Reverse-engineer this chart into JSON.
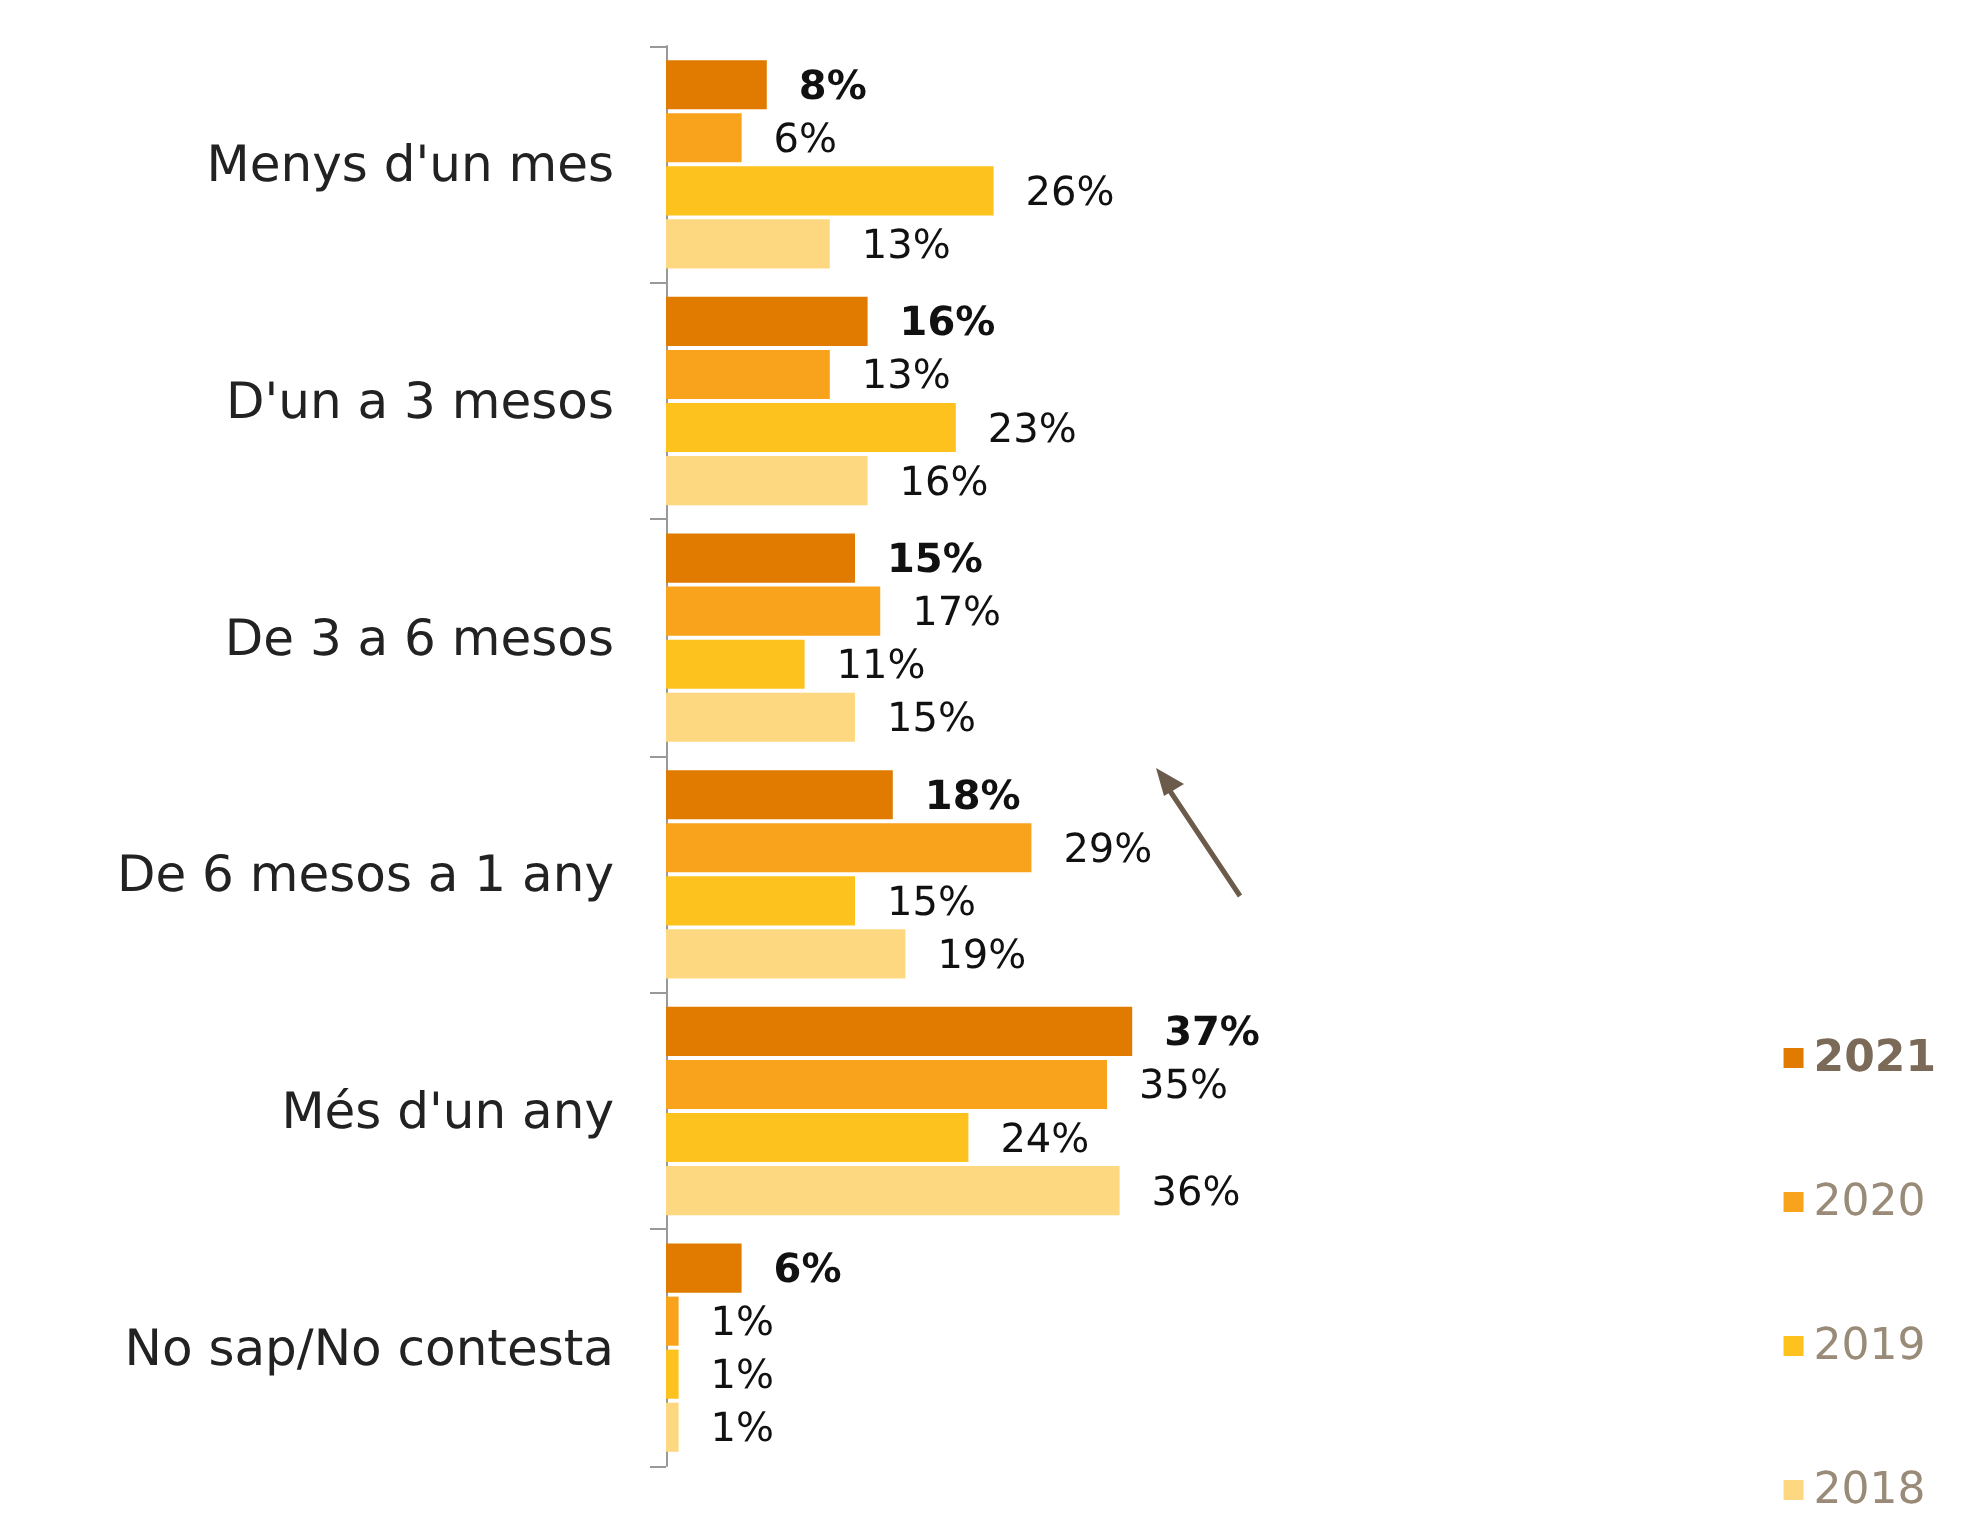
{
  "chart_data": {
    "type": "bar",
    "orientation": "horizontal",
    "categories": [
      "Menys d'un mes",
      "D'un a 3 mesos",
      "De 3 a 6 mesos",
      "De 6 mesos a 1 any",
      "Més d'un any",
      "No sap/No contesta"
    ],
    "series": [
      {
        "name": "2021",
        "color": "#e07b00",
        "values": [
          8,
          16,
          15,
          18,
          37,
          6
        ],
        "value_labels": [
          "8%",
          "16%",
          "15%",
          "18%",
          "37%",
          "6%"
        ]
      },
      {
        "name": "2020",
        "color": "#f9a21c",
        "values": [
          6,
          13,
          17,
          29,
          35,
          1
        ],
        "value_labels": [
          "6%",
          "13%",
          "17%",
          "29%",
          "35%",
          "1%"
        ]
      },
      {
        "name": "2019",
        "color": "#fdc21e",
        "values": [
          26,
          23,
          11,
          15,
          24,
          1
        ],
        "value_labels": [
          "26%",
          "23%",
          "11%",
          "15%",
          "24%",
          "1%"
        ]
      },
      {
        "name": "2018",
        "color": "#fdd880",
        "values": [
          13,
          16,
          15,
          19,
          36,
          1
        ],
        "value_labels": [
          "13%",
          "16%",
          "15%",
          "19%",
          "36%",
          "1%"
        ]
      }
    ],
    "legend": "bottom right"
  }
}
